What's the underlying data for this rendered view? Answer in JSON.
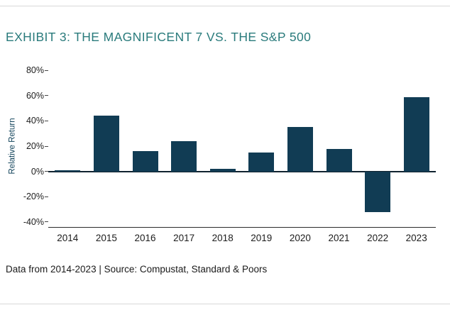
{
  "page": {
    "title": "EXHIBIT 3: THE MAGNIFICENT 7 VS. THE S&P 500",
    "footer": "Data from 2014-2023 | Source: Compustat, Standard & Poors"
  },
  "colors": {
    "title_teal": "#2a7b7c",
    "bar_navy": "#113c54",
    "zero_line": "#10232f",
    "divider_gray": "#d8d8d8"
  },
  "chart_data": {
    "type": "bar",
    "categories": [
      "2014",
      "2015",
      "2016",
      "2017",
      "2018",
      "2019",
      "2020",
      "2021",
      "2022",
      "2023"
    ],
    "values": [
      1,
      44,
      16,
      24,
      2,
      15,
      35,
      18,
      -32,
      59
    ],
    "title": "EXHIBIT 3: THE MAGNIFICENT 7 VS. THE S&P 500",
    "xlabel": "",
    "ylabel": "Relative Return",
    "ylim": [
      -40,
      80
    ],
    "yticks": [
      80,
      60,
      40,
      20,
      0,
      -20,
      -40
    ],
    "ytick_format": "percent",
    "grid": false,
    "legend": null,
    "source_note": "Data from 2014-2023 | Source: Compustat, Standard & Poors"
  }
}
